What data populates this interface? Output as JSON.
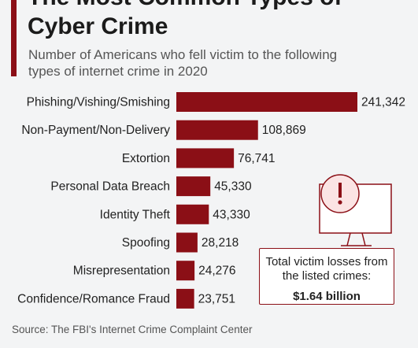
{
  "header": {
    "title": "The Most Common Types of Cyber Crime",
    "subtitle": "Number of Americans who fell victim to the following types of internet crime in 2020"
  },
  "callout": {
    "text": "Total victim losses from the listed crimes:",
    "value": "$1.64 billion"
  },
  "footer": {
    "source": "Source: The FBI's Internet Crime Complaint Center"
  },
  "colors": {
    "bar": "#8b0f16",
    "text": "#222222",
    "background": "#f3f4f5"
  },
  "icons": {
    "callout_icon": "monitor-warning-icon"
  },
  "chart_data": {
    "type": "bar",
    "orientation": "horizontal",
    "categories": [
      "Phishing/Vishing/Smishing",
      "Non-Payment/Non-Delivery",
      "Extortion",
      "Personal Data Breach",
      "Identity Theft",
      "Spoofing",
      "Misrepresentation",
      "Confidence/Romance Fraud"
    ],
    "values": [
      241342,
      108869,
      76741,
      45330,
      43330,
      28218,
      24276,
      23751
    ],
    "value_labels": [
      "241,342",
      "108,869",
      "76,741",
      "45,330",
      "43,330",
      "28,218",
      "24,276",
      "23,751"
    ],
    "title": "The Most Common Types of Cyber Crime",
    "subtitle": "Number of Americans who fell victim to the following types of internet crime in 2020",
    "xlabel": "",
    "ylabel": "",
    "xlim": [
      0,
      241342
    ],
    "grid": false,
    "legend": "none"
  }
}
